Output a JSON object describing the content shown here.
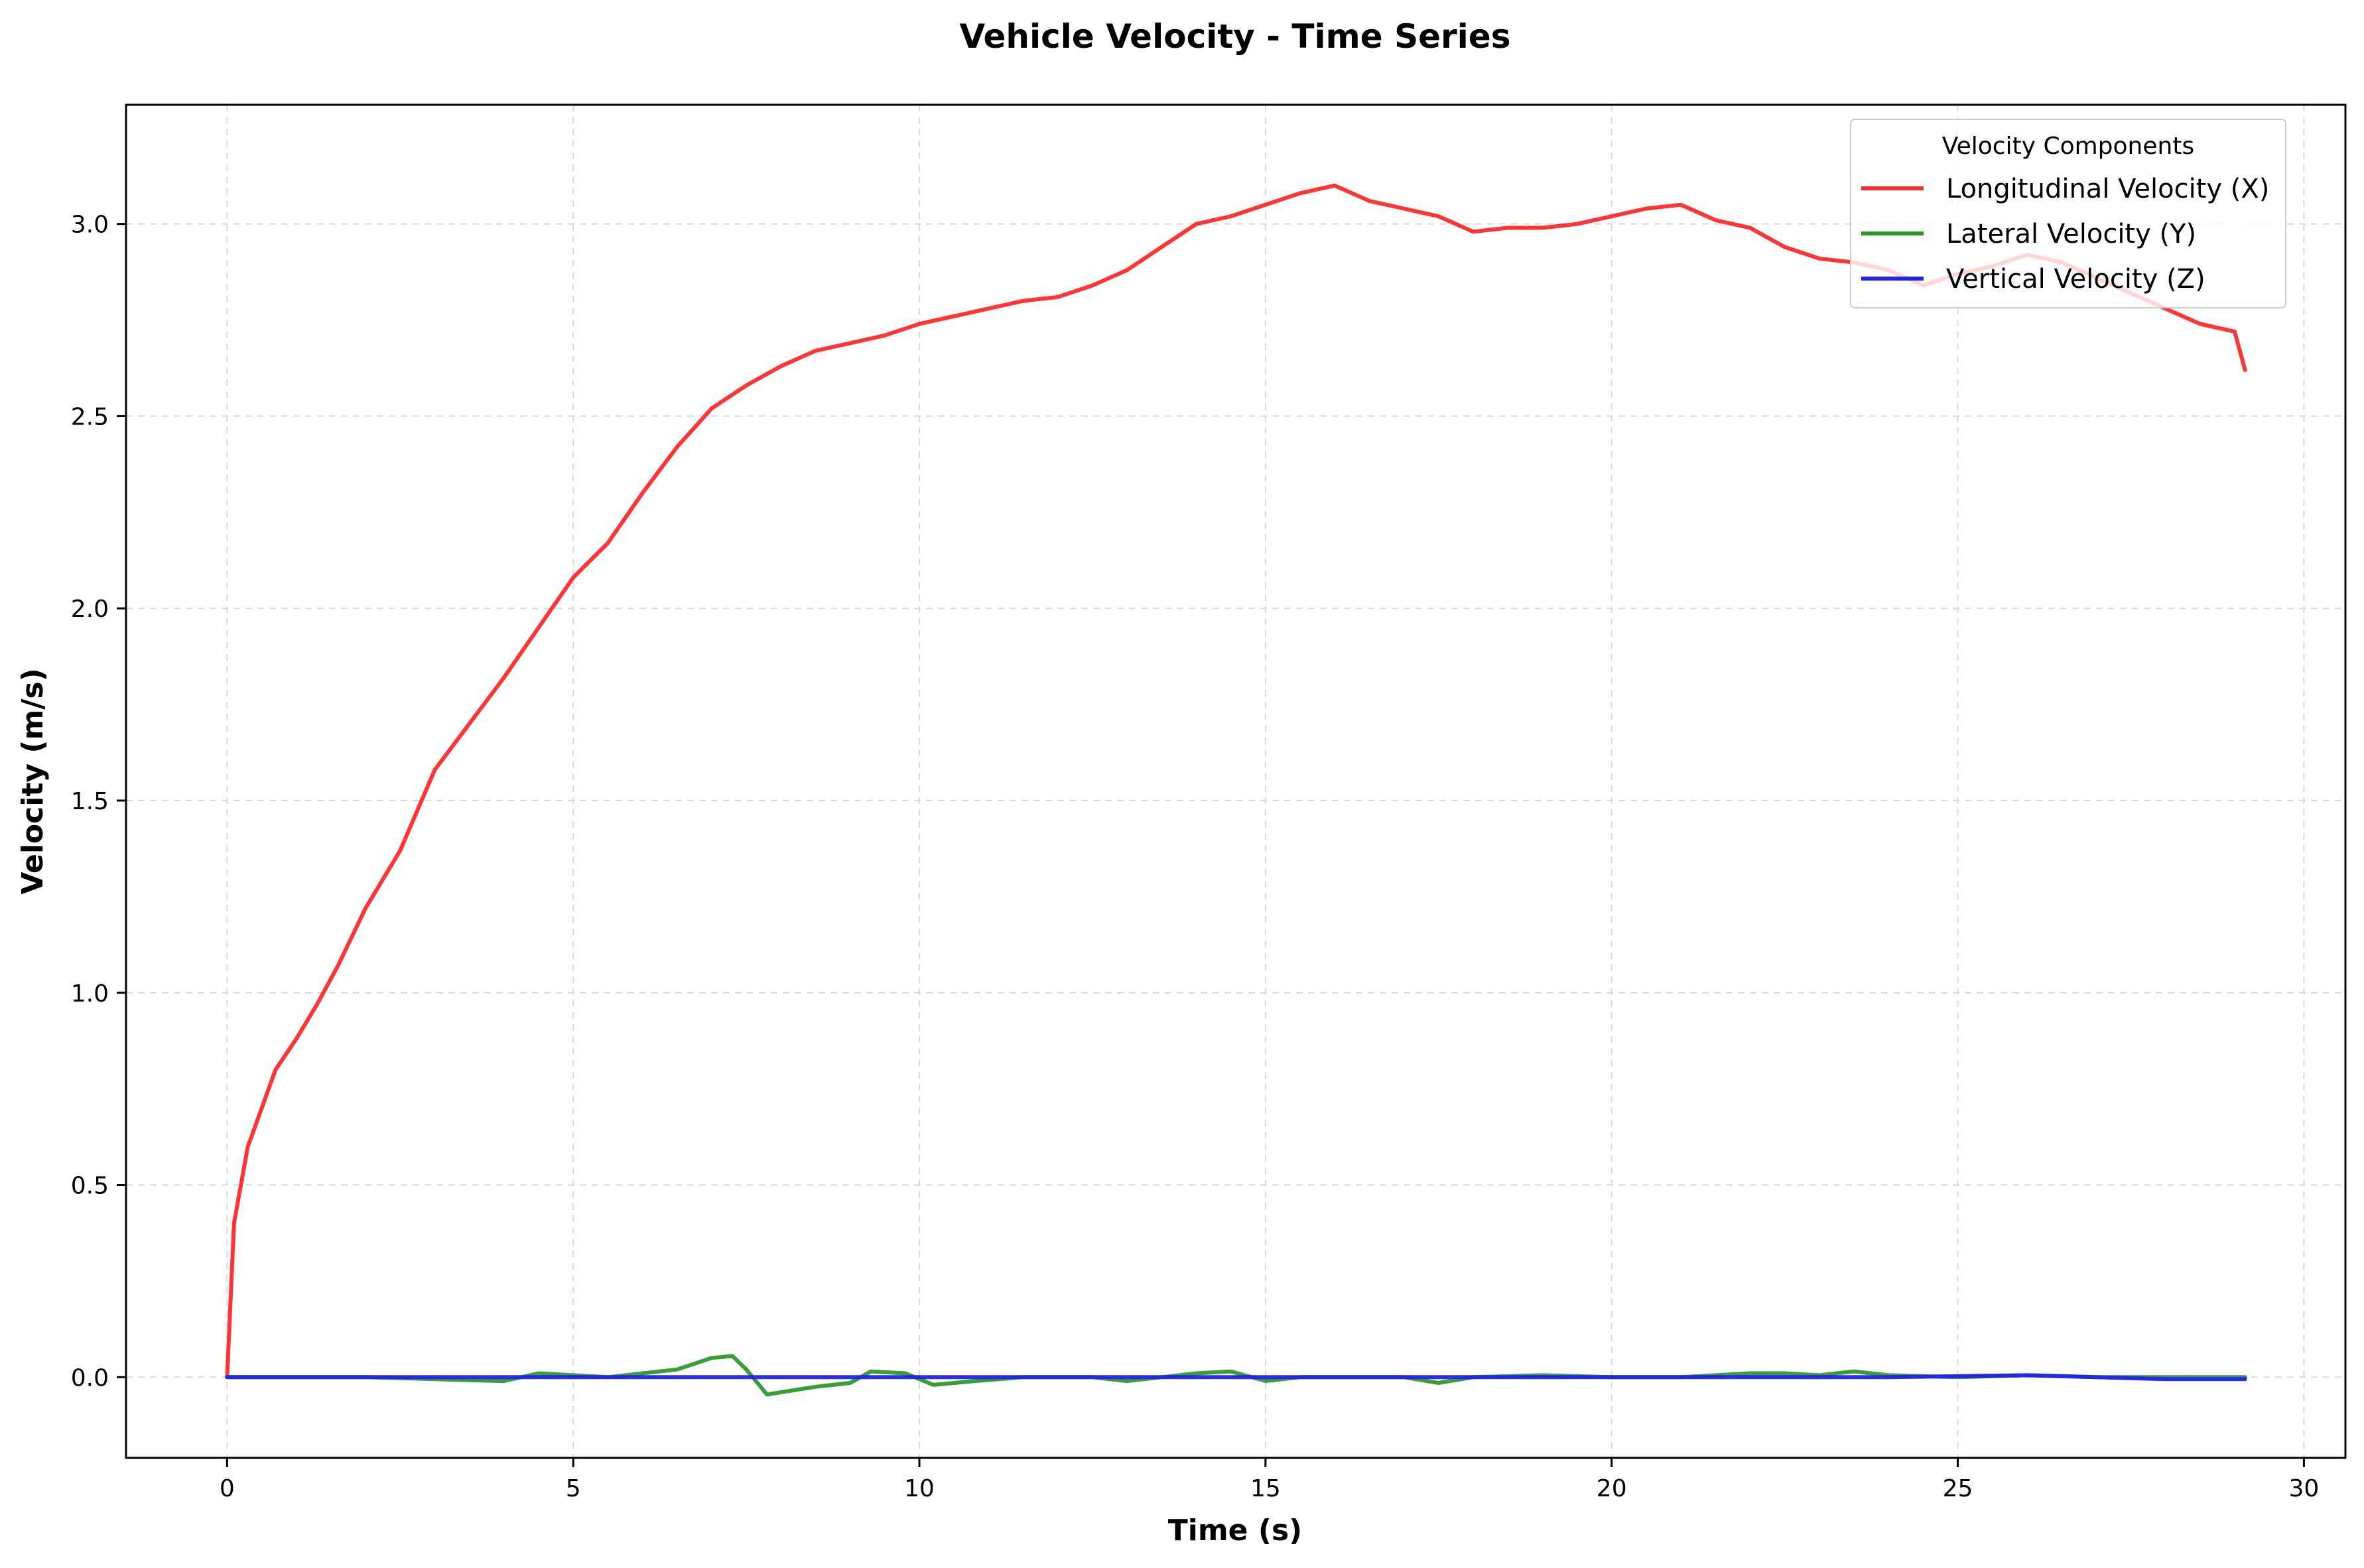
{
  "chart_data": {
    "type": "line",
    "title": "Vehicle Velocity - Time Series",
    "xlabel": "Time (s)",
    "ylabel": "Velocity (m/s)",
    "xlim": [
      -1.46,
      30.6
    ],
    "ylim": [
      -0.21,
      3.31
    ],
    "xticks": [
      0,
      5,
      10,
      15,
      20,
      25,
      30
    ],
    "yticks": [
      0.0,
      0.5,
      1.0,
      1.5,
      2.0,
      2.5,
      3.0
    ],
    "xtick_labels": [
      "0",
      "5",
      "10",
      "15",
      "20",
      "25",
      "30"
    ],
    "ytick_labels": [
      "0.0",
      "0.5",
      "1.0",
      "1.5",
      "2.0",
      "2.5",
      "3.0"
    ],
    "grid": true,
    "legend": {
      "title": "Velocity Components",
      "position": "top-right"
    },
    "series": [
      {
        "name": "Longitudinal Velocity (X)",
        "color": "#ff2a2a",
        "x": [
          0,
          0.05,
          0.1,
          0.2,
          0.3,
          0.5,
          0.7,
          1.0,
          1.3,
          1.6,
          2.0,
          2.5,
          3.0,
          3.5,
          4.0,
          4.5,
          5.0,
          5.5,
          6.0,
          6.5,
          7.0,
          7.5,
          8.0,
          8.5,
          9.0,
          9.5,
          10.0,
          10.5,
          11.0,
          11.5,
          12.0,
          12.5,
          13.0,
          13.5,
          14.0,
          14.5,
          15.0,
          15.5,
          16.0,
          16.5,
          17.0,
          17.5,
          18.0,
          18.5,
          19.0,
          19.5,
          20.0,
          20.5,
          21.0,
          21.5,
          22.0,
          22.5,
          23.0,
          23.5,
          24.0,
          24.5,
          25.0,
          25.5,
          26.0,
          26.5,
          27.0,
          27.5,
          28.0,
          28.5,
          29.0,
          29.15
        ],
        "y": [
          0.0,
          0.2,
          0.4,
          0.5,
          0.6,
          0.7,
          0.8,
          0.88,
          0.97,
          1.07,
          1.22,
          1.37,
          1.58,
          1.7,
          1.82,
          1.95,
          2.08,
          2.17,
          2.3,
          2.42,
          2.52,
          2.58,
          2.63,
          2.67,
          2.69,
          2.71,
          2.74,
          2.76,
          2.78,
          2.8,
          2.81,
          2.84,
          2.88,
          2.94,
          3.0,
          3.02,
          3.05,
          3.08,
          3.1,
          3.06,
          3.04,
          3.02,
          2.98,
          2.99,
          2.99,
          3.0,
          3.02,
          3.04,
          3.05,
          3.01,
          2.99,
          2.94,
          2.91,
          2.9,
          2.88,
          2.84,
          2.87,
          2.89,
          2.92,
          2.9,
          2.86,
          2.82,
          2.78,
          2.74,
          2.72,
          2.62
        ]
      },
      {
        "name": "Lateral Velocity (Y)",
        "color": "#2b9a2b",
        "x": [
          0,
          1,
          2,
          3,
          3.5,
          4.0,
          4.5,
          5.0,
          5.5,
          6.0,
          6.5,
          7.0,
          7.3,
          7.5,
          7.8,
          8.5,
          9.0,
          9.3,
          9.8,
          10.2,
          10.8,
          11.5,
          12.0,
          12.5,
          13.0,
          13.5,
          14.0,
          14.5,
          15.0,
          15.5,
          16.0,
          17.0,
          17.5,
          18.0,
          19.0,
          20.0,
          21.0,
          22.0,
          22.5,
          23.0,
          23.5,
          24.0,
          25.0,
          26.0,
          27.0,
          28.0,
          29.15
        ],
        "y": [
          0.0,
          0.0,
          0.0,
          -0.005,
          -0.008,
          -0.01,
          0.01,
          0.005,
          0.0,
          0.01,
          0.02,
          0.05,
          0.055,
          0.02,
          -0.045,
          -0.025,
          -0.015,
          0.015,
          0.01,
          -0.02,
          -0.01,
          0.0,
          0.0,
          0.0,
          -0.01,
          0.0,
          0.01,
          0.015,
          -0.01,
          0.0,
          0.0,
          0.0,
          -0.015,
          0.0,
          0.005,
          0.0,
          0.0,
          0.01,
          0.01,
          0.005,
          0.015,
          0.005,
          0.0,
          0.005,
          0.0,
          0.0,
          0.0
        ]
      },
      {
        "name": "Vertical Velocity (Z)",
        "color": "#2222ee",
        "x": [
          0,
          2,
          4,
          6,
          8,
          10,
          12,
          14,
          16,
          18,
          20,
          22,
          24,
          26,
          27,
          28,
          29.15
        ],
        "y": [
          0.0,
          0.0,
          0.0,
          0.0,
          0.0,
          0.0,
          0.0,
          0.0,
          0.0,
          0.0,
          0.0,
          0.0,
          0.0,
          0.005,
          0.0,
          -0.005,
          -0.005
        ]
      }
    ]
  }
}
